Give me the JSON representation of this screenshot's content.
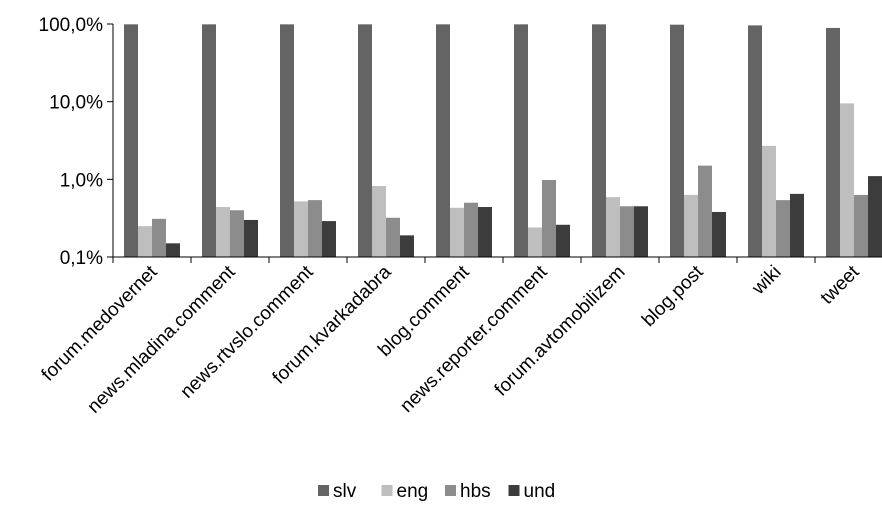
{
  "chart_data": {
    "type": "bar",
    "yscale": "log",
    "ylim": [
      0.1,
      100
    ],
    "yticks": [
      "0,1%",
      "1,0%",
      "10,0%",
      "100,0%"
    ],
    "ytick_values": [
      0.1,
      1,
      10,
      100
    ],
    "grid": false,
    "legend_position": "bottom",
    "categories": [
      "forum.medovernet",
      "news.mladina.comment",
      "news.rtvslo.comment",
      "forum.kvarkadabra",
      "blog.comment",
      "news.reporter.comment",
      "forum.avtomobilizem",
      "blog.post",
      "wiki",
      "tweet"
    ],
    "series": [
      {
        "name": "slv",
        "color": "#646464",
        "values": [
          99.0,
          99.0,
          99.0,
          99.0,
          99.0,
          99.0,
          99.0,
          98.0,
          96.0,
          89.0
        ]
      },
      {
        "name": "eng",
        "color": "#bebebe",
        "values": [
          0.25,
          0.44,
          0.52,
          0.82,
          0.43,
          0.24,
          0.59,
          0.63,
          2.7,
          9.5
        ]
      },
      {
        "name": "hbs",
        "color": "#8c8c8c",
        "values": [
          0.31,
          0.4,
          0.54,
          0.32,
          0.5,
          0.98,
          0.45,
          1.5,
          0.54,
          0.63
        ]
      },
      {
        "name": "und",
        "color": "#3c3c3c",
        "values": [
          0.15,
          0.3,
          0.29,
          0.19,
          0.44,
          0.26,
          0.45,
          0.38,
          0.65,
          1.1
        ]
      }
    ]
  }
}
